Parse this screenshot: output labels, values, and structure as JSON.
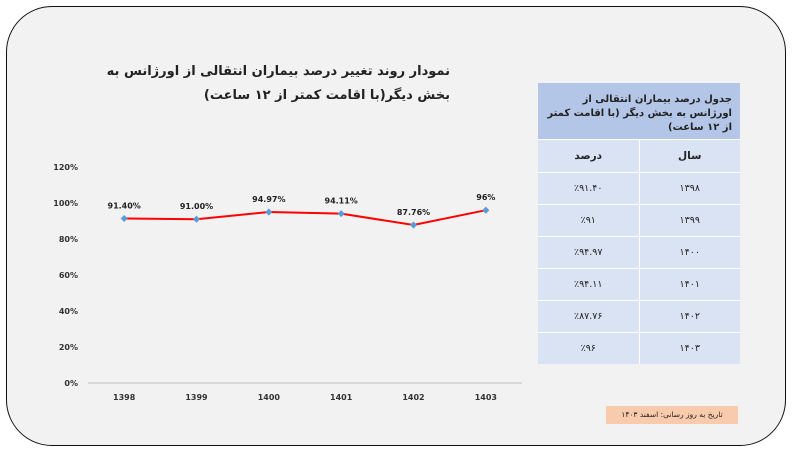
{
  "chart_data": {
    "type": "line",
    "title": "نمودار روند تغییر درصد بیماران انتقالی از اورژانس به بخش دیگر(با اقامت کمتر از ۱۲ ساعت)",
    "categories": [
      "1398",
      "1399",
      "1400",
      "1401",
      "1402",
      "1403"
    ],
    "values": [
      91.4,
      91.0,
      94.97,
      94.11,
      87.76,
      96
    ],
    "data_labels": [
      "91.40%",
      "91.00%",
      "94.97%",
      "94.11%",
      "87.76%",
      "96%"
    ],
    "y_ticks": [
      "0%",
      "20%",
      "40%",
      "60%",
      "80%",
      "100%",
      "120%"
    ],
    "ylim": [
      0,
      120
    ],
    "line_color": "#ff0000",
    "marker_color": "#5b9bd5",
    "grid": false
  },
  "table": {
    "title": "جدول درصد بیماران انتقالی از اورژانس به بخش دیگر (با اقامت کمتر از ۱۲ ساعت)",
    "headers": [
      "سال",
      "درصد"
    ],
    "rows": [
      [
        "۱۳۹۸",
        "٪۹۱.۴۰"
      ],
      [
        "۱۳۹۹",
        "٪۹۱"
      ],
      [
        "۱۴۰۰",
        "٪۹۴.۹۷"
      ],
      [
        "۱۴۰۱",
        "٪۹۴.۱۱"
      ],
      [
        "۱۴۰۲",
        "٪۸۷.۷۶"
      ],
      [
        "۱۴۰۳",
        "٪۹۶"
      ]
    ]
  },
  "footer": {
    "date_note": "تاریخ به روز رسانی: اسفند ۱۴۰۳"
  }
}
